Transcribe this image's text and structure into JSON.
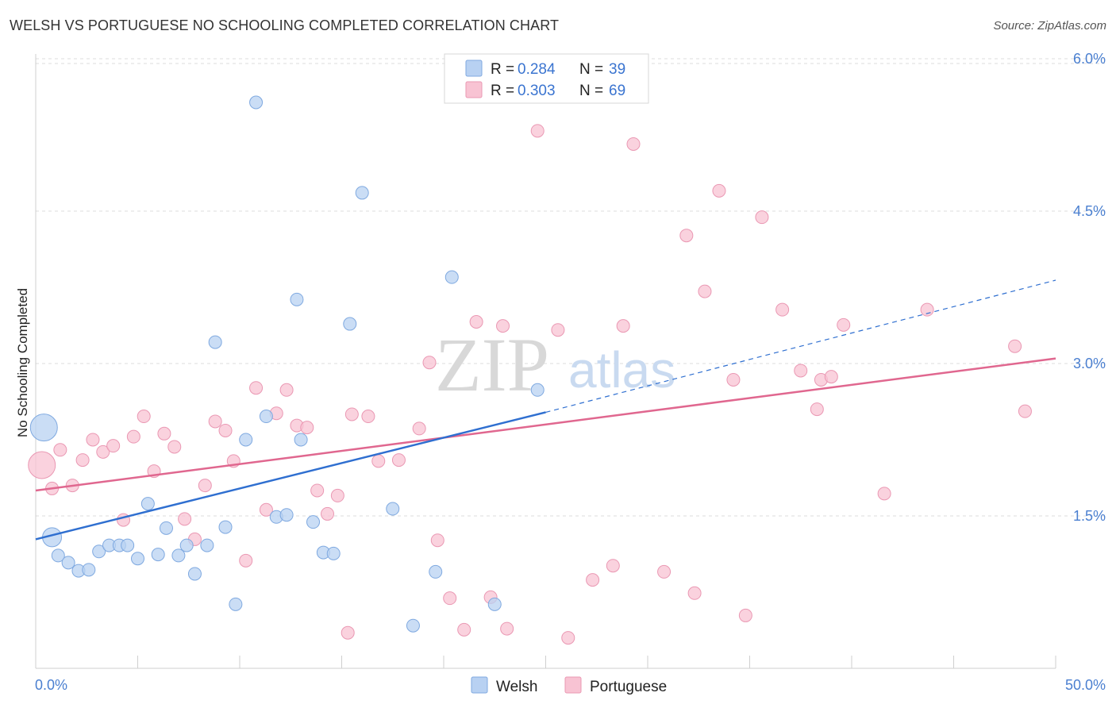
{
  "header": {
    "title": "WELSH VS PORTUGUESE NO SCHOOLING COMPLETED CORRELATION CHART",
    "source": "Source: ZipAtlas.com"
  },
  "watermark": {
    "zip": "ZIP",
    "atlas": "atlas"
  },
  "colors": {
    "welsh_fill": "#b8d1f2",
    "welsh_stroke": "#7fa9e0",
    "welsh_line": "#2f6fd0",
    "portuguese_fill": "#f8c3d3",
    "portuguese_stroke": "#ea98b3",
    "portuguese_line": "#e0678f",
    "tick_label": "#4a7fd0",
    "grid": "#dddddd"
  },
  "legend": {
    "rows": [
      {
        "r_label": "R = ",
        "r_value": "0.284",
        "n_label": "N = ",
        "n_value": "39"
      },
      {
        "r_label": "R = ",
        "r_value": "0.303",
        "n_label": "N = ",
        "n_value": "69"
      }
    ]
  },
  "chart_data": {
    "type": "scatter",
    "title": "WELSH VS PORTUGUESE NO SCHOOLING COMPLETED CORRELATION CHART",
    "xlabel": "",
    "ylabel": "No Schooling Completed",
    "xlim": [
      0,
      50
    ],
    "ylim": [
      0,
      6.2
    ],
    "x_tick_labels": [
      "0.0%",
      "50.0%"
    ],
    "y_ticks": [
      1.5,
      3.0,
      4.5,
      6.0
    ],
    "y_tick_labels": [
      "1.5%",
      "3.0%",
      "4.5%",
      "6.0%"
    ],
    "grid": true,
    "legend_placement": "top-center",
    "series": [
      {
        "name": "Welsh",
        "r": 0.284,
        "n": 39,
        "trend": {
          "x0": 0,
          "y0": 1.27,
          "x1": 25,
          "y1": 2.52,
          "dashed_to_x": 50,
          "dashed_to_y": 3.82
        },
        "points": [
          {
            "x": 0.4,
            "y": 2.37,
            "big": 2
          },
          {
            "x": 0.8,
            "y": 1.29,
            "big": 1
          },
          {
            "x": 1.1,
            "y": 1.11
          },
          {
            "x": 1.6,
            "y": 1.04
          },
          {
            "x": 2.1,
            "y": 0.96
          },
          {
            "x": 2.6,
            "y": 0.97
          },
          {
            "x": 3.1,
            "y": 1.15
          },
          {
            "x": 3.6,
            "y": 1.21
          },
          {
            "x": 4.1,
            "y": 1.21
          },
          {
            "x": 4.5,
            "y": 1.21
          },
          {
            "x": 5.0,
            "y": 1.08
          },
          {
            "x": 5.5,
            "y": 1.62
          },
          {
            "x": 6.0,
            "y": 1.12
          },
          {
            "x": 6.4,
            "y": 1.38
          },
          {
            "x": 7.0,
            "y": 1.11
          },
          {
            "x": 7.4,
            "y": 1.21
          },
          {
            "x": 7.8,
            "y": 0.93
          },
          {
            "x": 8.4,
            "y": 1.21
          },
          {
            "x": 8.8,
            "y": 3.21
          },
          {
            "x": 9.3,
            "y": 1.39
          },
          {
            "x": 9.8,
            "y": 0.63
          },
          {
            "x": 10.3,
            "y": 2.25
          },
          {
            "x": 10.8,
            "y": 5.57
          },
          {
            "x": 11.3,
            "y": 2.48
          },
          {
            "x": 11.8,
            "y": 1.49
          },
          {
            "x": 12.3,
            "y": 1.51
          },
          {
            "x": 12.8,
            "y": 3.63
          },
          {
            "x": 13.0,
            "y": 2.25
          },
          {
            "x": 13.6,
            "y": 1.44
          },
          {
            "x": 14.1,
            "y": 1.14
          },
          {
            "x": 14.6,
            "y": 1.13
          },
          {
            "x": 15.4,
            "y": 3.39
          },
          {
            "x": 16.0,
            "y": 4.68
          },
          {
            "x": 17.5,
            "y": 1.57
          },
          {
            "x": 18.5,
            "y": 0.42
          },
          {
            "x": 19.6,
            "y": 0.95
          },
          {
            "x": 20.4,
            "y": 3.85
          },
          {
            "x": 22.5,
            "y": 0.63
          },
          {
            "x": 24.6,
            "y": 2.74
          }
        ]
      },
      {
        "name": "Portuguese",
        "r": 0.303,
        "n": 69,
        "trend": {
          "x0": 0,
          "y0": 1.75,
          "x1": 50,
          "y1": 3.05
        },
        "points": [
          {
            "x": 0.3,
            "y": 2.0,
            "big": 2
          },
          {
            "x": 0.8,
            "y": 1.77
          },
          {
            "x": 1.2,
            "y": 2.15
          },
          {
            "x": 1.8,
            "y": 1.8
          },
          {
            "x": 2.3,
            "y": 2.05
          },
          {
            "x": 2.8,
            "y": 2.25
          },
          {
            "x": 3.3,
            "y": 2.13
          },
          {
            "x": 3.8,
            "y": 2.19
          },
          {
            "x": 4.3,
            "y": 1.46
          },
          {
            "x": 4.8,
            "y": 2.28
          },
          {
            "x": 5.3,
            "y": 2.48
          },
          {
            "x": 5.8,
            "y": 1.94
          },
          {
            "x": 6.3,
            "y": 2.31
          },
          {
            "x": 6.8,
            "y": 2.18
          },
          {
            "x": 7.3,
            "y": 1.47
          },
          {
            "x": 7.8,
            "y": 1.27
          },
          {
            "x": 8.3,
            "y": 1.8
          },
          {
            "x": 8.8,
            "y": 2.43
          },
          {
            "x": 9.3,
            "y": 2.34
          },
          {
            "x": 9.7,
            "y": 2.04
          },
          {
            "x": 10.3,
            "y": 1.06
          },
          {
            "x": 10.8,
            "y": 2.76
          },
          {
            "x": 11.3,
            "y": 1.56
          },
          {
            "x": 11.8,
            "y": 2.51
          },
          {
            "x": 12.3,
            "y": 2.74
          },
          {
            "x": 12.8,
            "y": 2.39
          },
          {
            "x": 13.3,
            "y": 2.37
          },
          {
            "x": 13.8,
            "y": 1.75
          },
          {
            "x": 14.3,
            "y": 1.52
          },
          {
            "x": 14.8,
            "y": 1.7
          },
          {
            "x": 15.3,
            "y": 0.35
          },
          {
            "x": 15.5,
            "y": 2.5
          },
          {
            "x": 16.3,
            "y": 2.48
          },
          {
            "x": 16.8,
            "y": 2.04
          },
          {
            "x": 17.8,
            "y": 2.05
          },
          {
            "x": 18.8,
            "y": 2.36
          },
          {
            "x": 19.3,
            "y": 3.01
          },
          {
            "x": 19.7,
            "y": 1.26
          },
          {
            "x": 20.3,
            "y": 0.69
          },
          {
            "x": 21.0,
            "y": 0.38
          },
          {
            "x": 21.6,
            "y": 3.41
          },
          {
            "x": 22.3,
            "y": 0.7
          },
          {
            "x": 22.9,
            "y": 3.37
          },
          {
            "x": 23.1,
            "y": 0.39
          },
          {
            "x": 24.6,
            "y": 5.29
          },
          {
            "x": 25.6,
            "y": 3.33
          },
          {
            "x": 26.1,
            "y": 0.3
          },
          {
            "x": 27.3,
            "y": 0.87
          },
          {
            "x": 28.3,
            "y": 1.01
          },
          {
            "x": 28.8,
            "y": 3.37
          },
          {
            "x": 29.3,
            "y": 5.16
          },
          {
            "x": 30.8,
            "y": 0.95
          },
          {
            "x": 31.9,
            "y": 4.26
          },
          {
            "x": 32.3,
            "y": 0.74
          },
          {
            "x": 32.8,
            "y": 3.71
          },
          {
            "x": 33.5,
            "y": 4.7
          },
          {
            "x": 34.2,
            "y": 2.84
          },
          {
            "x": 34.8,
            "y": 0.52
          },
          {
            "x": 35.6,
            "y": 4.44
          },
          {
            "x": 36.6,
            "y": 3.53
          },
          {
            "x": 37.5,
            "y": 2.93
          },
          {
            "x": 38.3,
            "y": 2.55
          },
          {
            "x": 38.5,
            "y": 2.84
          },
          {
            "x": 39.0,
            "y": 2.87
          },
          {
            "x": 39.6,
            "y": 3.38
          },
          {
            "x": 41.6,
            "y": 1.72
          },
          {
            "x": 43.7,
            "y": 3.53
          },
          {
            "x": 48.0,
            "y": 3.17
          },
          {
            "x": 48.5,
            "y": 2.53
          }
        ]
      }
    ]
  }
}
